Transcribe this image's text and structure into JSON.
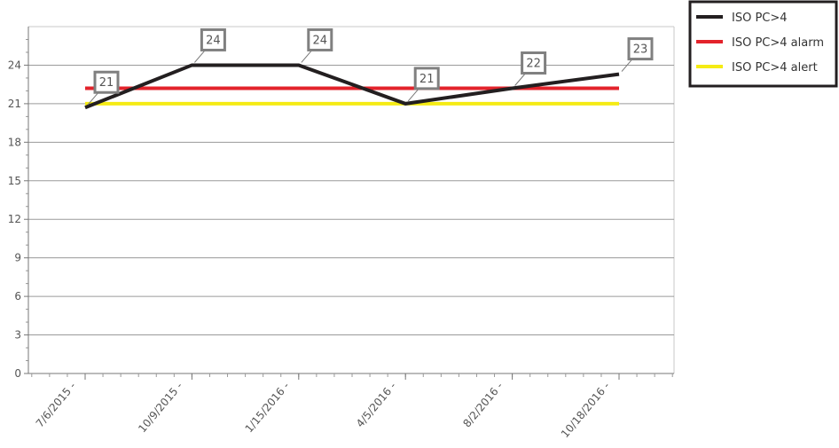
{
  "chart_data": {
    "type": "line",
    "categories": [
      "7/6/2015",
      "10/9/2015",
      "1/15/2016",
      "4/5/2016",
      "8/2/2016",
      "10/18/2016"
    ],
    "x_tick_labels": [
      "7/6/2015 -",
      "10/9/2015 -",
      "1/15/2016 -",
      "4/5/2016 -",
      "8/2/2016 -",
      "10/18/2016 -"
    ],
    "ylim": [
      0,
      27
    ],
    "y_ticks": [
      0,
      3,
      6,
      9,
      12,
      15,
      18,
      21,
      24
    ],
    "y_tick_labels": [
      "0",
      "3",
      "6",
      "9",
      "12",
      "15",
      "18",
      "21",
      "24"
    ],
    "grid": true,
    "legend_position": "top-right",
    "series": [
      {
        "name": "ISO PC>4",
        "color": "#231f20",
        "values": [
          20.7,
          24,
          24,
          21,
          22.2,
          23.3
        ],
        "data_labels": [
          "21",
          "24",
          "24",
          "21",
          "22",
          "23"
        ]
      },
      {
        "name": "ISO PC>4 alarm",
        "color": "#e3232b",
        "values": [
          22.2,
          22.2,
          22.2,
          22.2,
          22.2,
          22.2
        ]
      },
      {
        "name": "ISO PC>4 alert",
        "color": "#f5eb14",
        "values": [
          21,
          21,
          21,
          21,
          21,
          21
        ]
      }
    ]
  }
}
